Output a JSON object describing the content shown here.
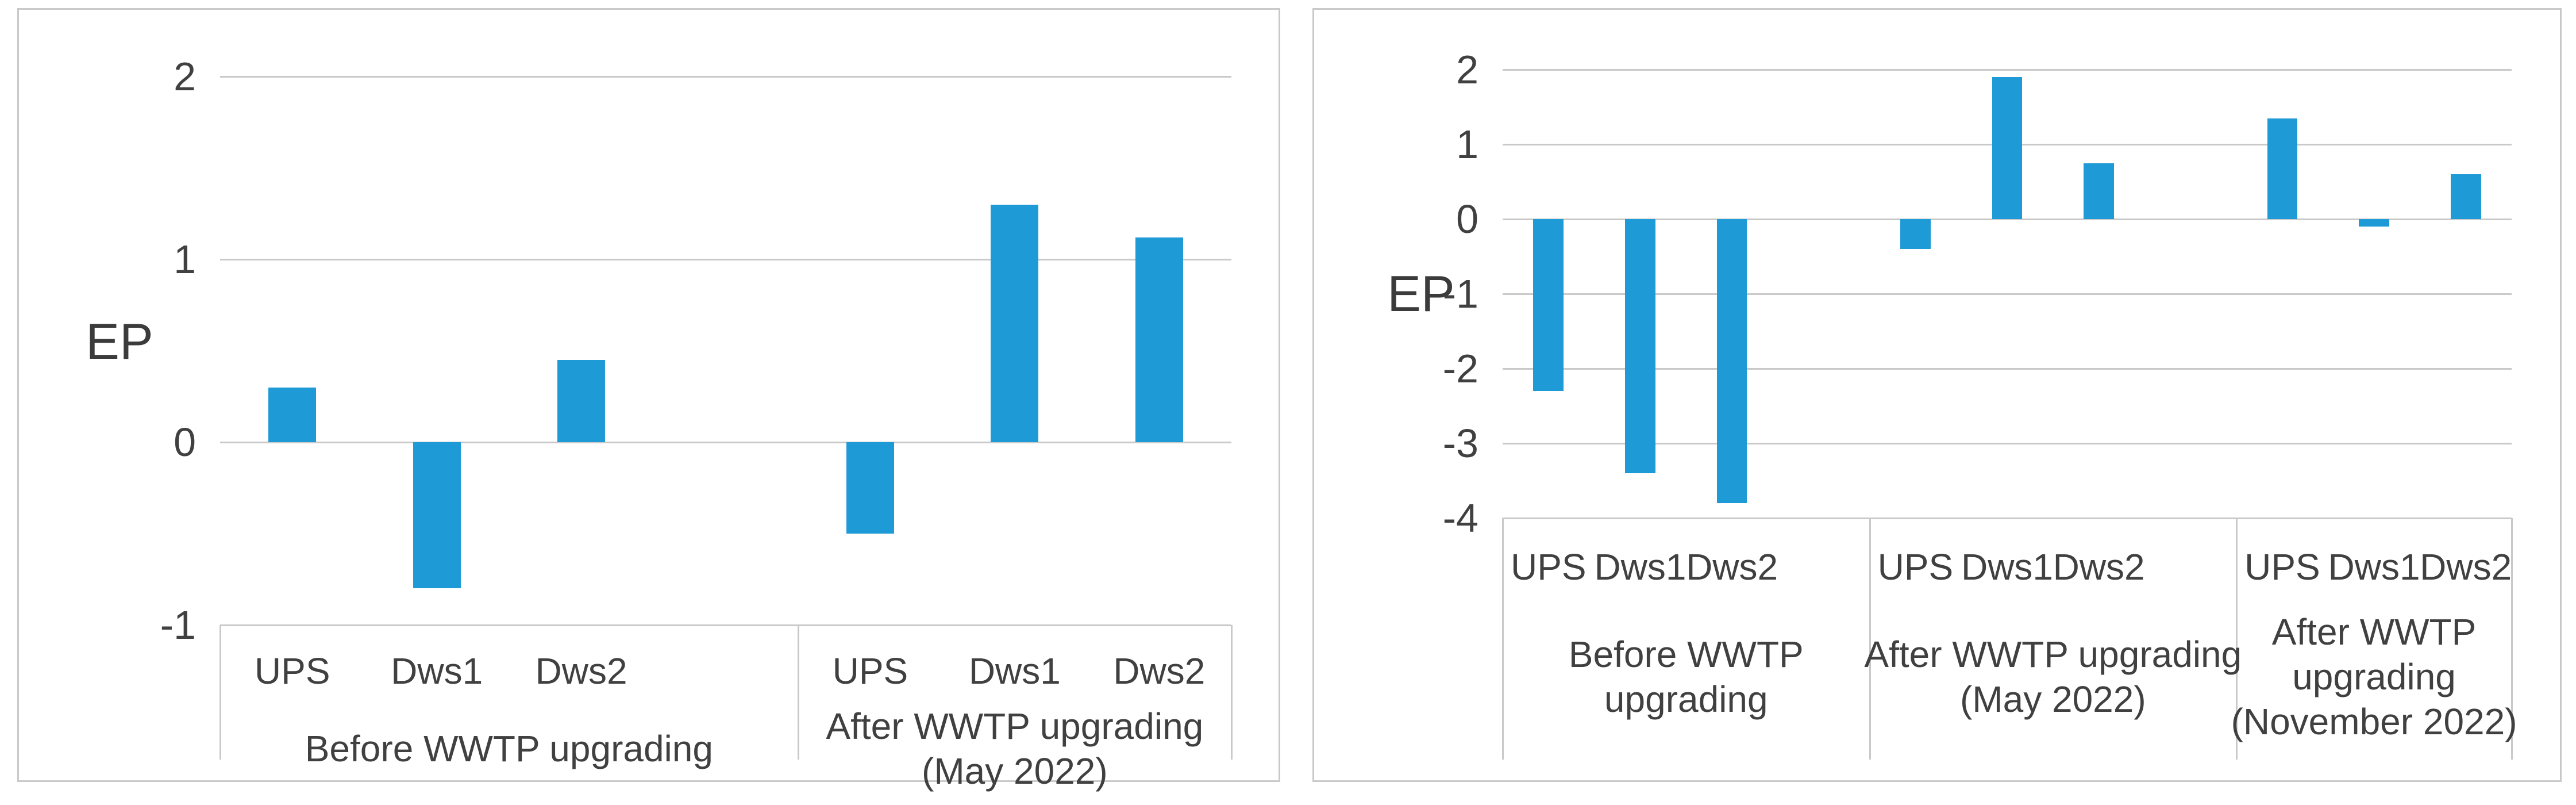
{
  "figure": {
    "bar_color": "#1E9AD6",
    "grid_color": "#C9C9C9",
    "text_color": "#404040",
    "panel_border_color": "#C9C9C9",
    "background_color": "#FFFFFF"
  },
  "chart_data": [
    {
      "type": "bar",
      "title": "",
      "ylabel": "EP",
      "xlabel": "",
      "ylim": [
        -1,
        2
      ],
      "yticks": [
        2,
        1,
        0,
        -1
      ],
      "grid": true,
      "legend": "none",
      "categories": [
        "UPS",
        "Dws1",
        "Dws2"
      ],
      "groups": [
        {
          "label_lines": [
            "Before WWTP upgrading"
          ],
          "values": [
            0.3,
            -0.8,
            0.45
          ]
        },
        {
          "label_lines": [
            "After WWTP upgrading",
            "(May 2022)"
          ],
          "values": [
            -0.5,
            1.3,
            1.12
          ]
        }
      ]
    },
    {
      "type": "bar",
      "title": "",
      "ylabel": "EP",
      "xlabel": "",
      "ylim": [
        -4,
        2
      ],
      "yticks": [
        2,
        1,
        0,
        -1,
        -2,
        -3,
        -4
      ],
      "grid": true,
      "legend": "none",
      "categories": [
        "UPS",
        "Dws1",
        "Dws2"
      ],
      "groups": [
        {
          "label_lines": [
            "Before WWTP",
            "upgrading"
          ],
          "values": [
            -2.3,
            -3.4,
            -3.8
          ]
        },
        {
          "label_lines": [
            "After WWTP upgrading",
            "(May 2022)"
          ],
          "values": [
            -0.4,
            1.9,
            0.75
          ]
        },
        {
          "label_lines": [
            "After WWTP",
            "upgrading",
            "(November 2022)"
          ],
          "values": [
            1.35,
            -0.1,
            0.6
          ]
        }
      ]
    }
  ]
}
